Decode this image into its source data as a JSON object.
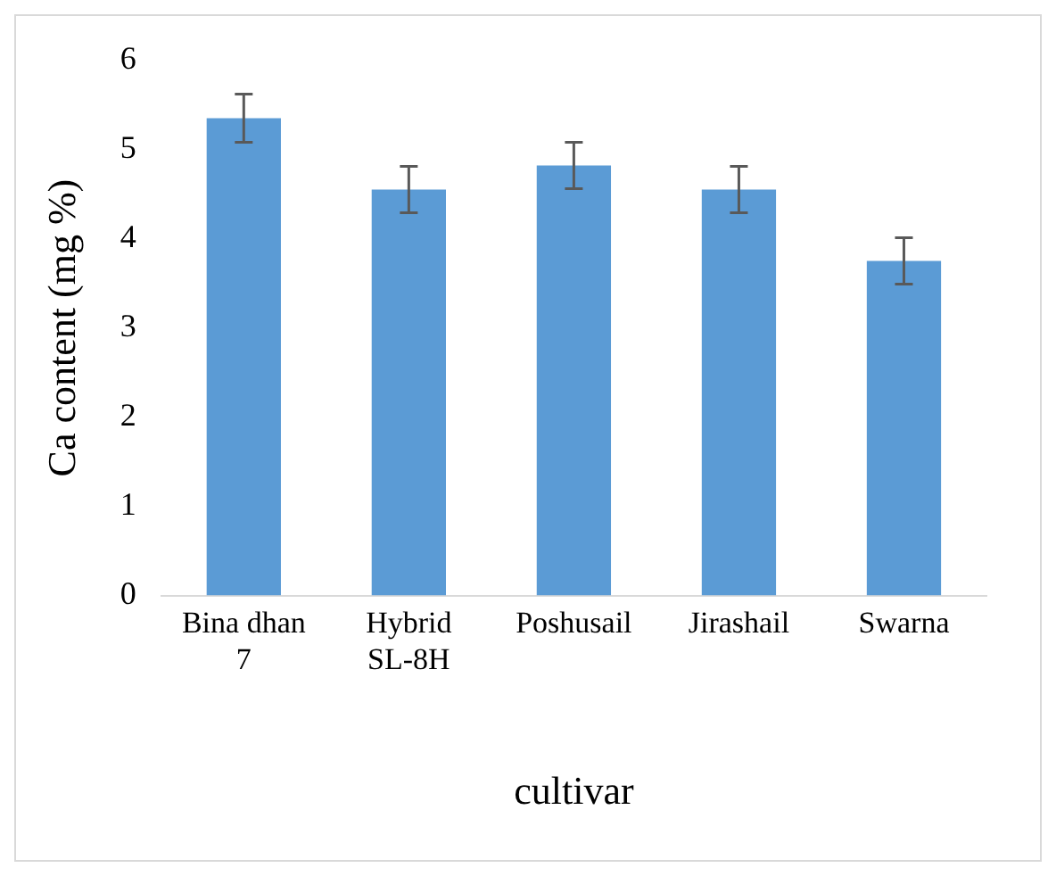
{
  "chart_data": {
    "type": "bar",
    "xlabel": "cultivar",
    "ylabel": "Ca content (mg %)",
    "categories": [
      "Bina dhan 7",
      "Hybrid SL-8H",
      "Poshusail",
      "Jirashail",
      "Swarna"
    ],
    "values": [
      5.35,
      4.55,
      4.82,
      4.55,
      3.75
    ],
    "errors": [
      0.27,
      0.26,
      0.26,
      0.26,
      0.26
    ],
    "color": "#5b9bd5",
    "ylim": [
      0,
      6
    ],
    "yticks": [
      0,
      1,
      2,
      3,
      4,
      5,
      6
    ],
    "grid": false,
    "legend": false
  }
}
